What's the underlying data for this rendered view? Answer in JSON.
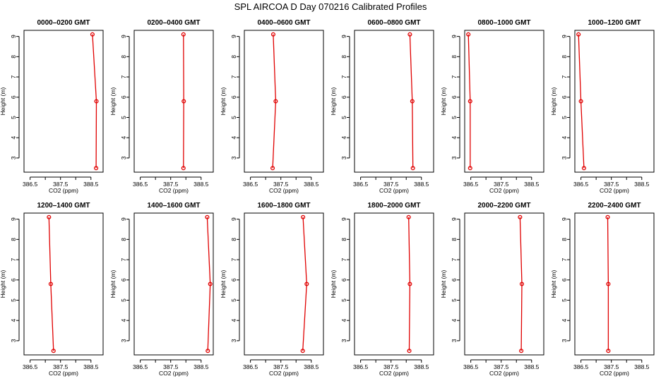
{
  "colors": {
    "series": "#e00000",
    "axis": "#000000"
  },
  "chart_data": {
    "type": "line",
    "title": "SPL AIRCOA D  Day 070216  Calibrated Profiles",
    "xlabel": "CO2 (ppm)",
    "ylabel": "Height (m)",
    "xlim": [
      386.3,
      388.9
    ],
    "ylim": [
      2.3,
      9.3
    ],
    "x_ticks": [
      386.5,
      387,
      387.5,
      388,
      388.5
    ],
    "x_tick_labels": [
      "386.5",
      "",
      "387.5",
      "",
      "388.5"
    ],
    "y_ticks": [
      3,
      4,
      5,
      6,
      7,
      8,
      9
    ],
    "y_tick_labels": [
      "3",
      "4",
      "5",
      "6",
      "7",
      "8",
      "9"
    ],
    "heights": [
      9.1,
      5.8,
      2.5
    ],
    "panels": [
      {
        "title": "0000–0200 GMT",
        "co2": [
          388.55,
          388.68,
          388.67
        ]
      },
      {
        "title": "0200–0400 GMT",
        "co2": [
          387.92,
          387.93,
          387.92
        ]
      },
      {
        "title": "0400–0600 GMT",
        "co2": [
          387.25,
          387.33,
          387.23
        ]
      },
      {
        "title": "0600–0800 GMT",
        "co2": [
          388.12,
          388.2,
          388.22
        ]
      },
      {
        "title": "0800–1000 GMT",
        "co2": [
          386.42,
          386.48,
          386.48
        ]
      },
      {
        "title": "1000–1200 GMT",
        "co2": [
          386.42,
          386.5,
          386.6
        ]
      },
      {
        "title": "1200–1400 GMT",
        "co2": [
          387.12,
          387.18,
          387.27
        ]
      },
      {
        "title": "1400–1600 GMT",
        "co2": [
          388.7,
          388.8,
          388.72
        ]
      },
      {
        "title": "1600–1800 GMT",
        "co2": [
          388.23,
          388.35,
          388.22
        ]
      },
      {
        "title": "1800–2000 GMT",
        "co2": [
          388.08,
          388.12,
          388.1
        ]
      },
      {
        "title": "2000–2200 GMT",
        "co2": [
          388.12,
          388.18,
          388.16
        ]
      },
      {
        "title": "2200–2400 GMT",
        "co2": [
          387.38,
          387.4,
          387.4
        ]
      }
    ]
  }
}
